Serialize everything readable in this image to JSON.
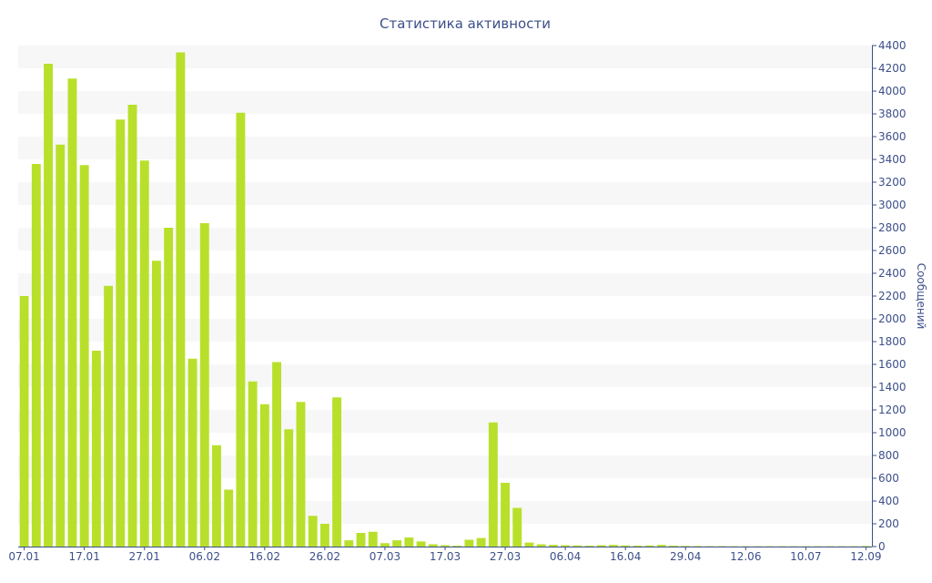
{
  "chart_data": {
    "type": "bar",
    "title": "Статистика активности",
    "ylabel": "Сообщений",
    "xlabel": "",
    "ylim": [
      0,
      4400
    ],
    "y_ticks": [
      0,
      200,
      400,
      600,
      800,
      1000,
      1200,
      1400,
      1600,
      1800,
      2000,
      2200,
      2400,
      2600,
      2800,
      3000,
      3200,
      3400,
      3600,
      3800,
      4000,
      4200,
      4400
    ],
    "y_axis_position": "right",
    "grid": "alternating horizontal bands",
    "bar_color": "#b8e02a",
    "x_tick_labels": [
      "07.01",
      "17.01",
      "27.01",
      "06.02",
      "16.02",
      "26.02",
      "07.03",
      "17.03",
      "27.03",
      "06.04",
      "16.04",
      "29.04",
      "12.06",
      "10.07",
      "12.09"
    ],
    "x_tick_label_bar_index": [
      0,
      5,
      10,
      15,
      20,
      25,
      30,
      35,
      40,
      45,
      50,
      55,
      60,
      65,
      70
    ],
    "values": [
      2200,
      3360,
      4240,
      3530,
      4110,
      3350,
      1720,
      2290,
      3750,
      3880,
      3390,
      2510,
      2800,
      4340,
      1650,
      2840,
      890,
      500,
      3810,
      1450,
      1250,
      1620,
      1030,
      1270,
      270,
      200,
      1310,
      55,
      120,
      130,
      30,
      55,
      80,
      45,
      20,
      12,
      8,
      60,
      75,
      1090,
      560,
      340,
      35,
      20,
      15,
      12,
      10,
      8,
      12,
      15,
      10,
      8,
      10,
      15,
      8,
      6,
      5,
      4,
      4,
      3,
      3,
      3,
      3,
      3,
      3,
      3,
      3,
      3,
      3,
      3,
      5
    ]
  }
}
